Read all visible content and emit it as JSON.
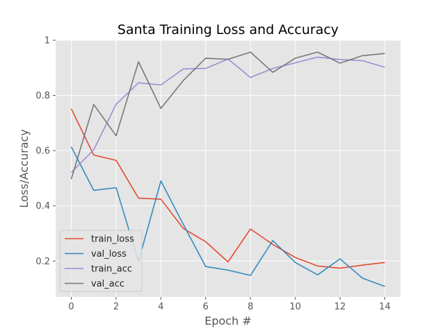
{
  "chart_data": {
    "type": "line",
    "title": "Santa Training Loss and Accuracy",
    "xlabel": "Epoch #",
    "ylabel": "Loss/Accuracy",
    "x": [
      0,
      1,
      2,
      3,
      4,
      5,
      6,
      7,
      8,
      9,
      10,
      11,
      12,
      13,
      14
    ],
    "xlim": [
      -0.7,
      14.7
    ],
    "ylim": [
      0.07,
      1.0
    ],
    "xticks": [
      0,
      2,
      4,
      6,
      8,
      10,
      12,
      14
    ],
    "yticks": [
      0.2,
      0.4,
      0.6,
      0.8,
      1.0
    ],
    "grid": true,
    "legend_position": "lower-left",
    "series": [
      {
        "name": "train_loss",
        "color": "#e24a33",
        "values": [
          0.752,
          0.584,
          0.565,
          0.428,
          0.424,
          0.318,
          0.27,
          0.197,
          0.316,
          0.26,
          0.213,
          0.182,
          0.174,
          0.185,
          0.195
        ]
      },
      {
        "name": "val_loss",
        "color": "#348abd",
        "values": [
          0.614,
          0.456,
          0.466,
          0.199,
          0.49,
          0.333,
          0.18,
          0.167,
          0.148,
          0.274,
          0.195,
          0.15,
          0.208,
          0.138,
          0.108
        ]
      },
      {
        "name": "train_acc",
        "color": "#988ed5",
        "values": [
          0.521,
          0.603,
          0.768,
          0.846,
          0.838,
          0.896,
          0.898,
          0.932,
          0.865,
          0.898,
          0.918,
          0.939,
          0.93,
          0.926,
          0.902
        ]
      },
      {
        "name": "val_acc",
        "color": "#777777",
        "values": [
          0.497,
          0.767,
          0.654,
          0.922,
          0.753,
          0.854,
          0.935,
          0.931,
          0.957,
          0.884,
          0.935,
          0.957,
          0.917,
          0.944,
          0.952
        ]
      }
    ]
  }
}
